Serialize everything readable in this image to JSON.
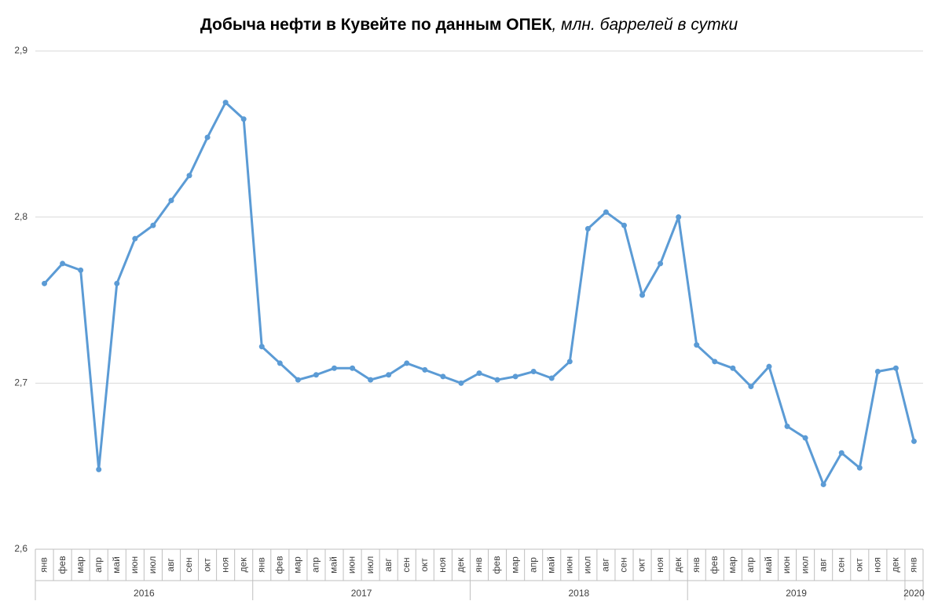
{
  "chart_data": {
    "type": "line",
    "title": "Добыча нефти в Кувейте по данным ОПЕК",
    "title_unit": ", млн. баррелей в сутки",
    "categories": [
      "янв",
      "фев",
      "мар",
      "апр",
      "май",
      "июн",
      "июл",
      "авг",
      "сен",
      "окт",
      "ноя",
      "дек",
      "янв",
      "фев",
      "мар",
      "апр",
      "май",
      "июн",
      "июл",
      "авг",
      "сен",
      "окт",
      "ноя",
      "дек",
      "янв",
      "фев",
      "мар",
      "апр",
      "май",
      "июн",
      "июл",
      "авг",
      "сен",
      "окт",
      "ноя",
      "дек",
      "янв",
      "фев",
      "мар",
      "апр",
      "май",
      "июн",
      "июл",
      "авг",
      "сен",
      "окт",
      "ноя",
      "дек",
      "янв"
    ],
    "x_groups": [
      "2016",
      "2017",
      "2018",
      "2019",
      "2020"
    ],
    "series": [
      {
        "color": "#5b9bd5",
        "values": [
          2.76,
          2.772,
          2.768,
          2.648,
          2.76,
          2.787,
          2.795,
          2.81,
          2.825,
          2.848,
          2.869,
          2.859,
          2.722,
          2.712,
          2.702,
          2.705,
          2.709,
          2.709,
          2.702,
          2.705,
          2.712,
          2.708,
          2.704,
          2.7,
          2.706,
          2.702,
          2.704,
          2.707,
          2.703,
          2.713,
          2.793,
          2.803,
          2.795,
          2.753,
          2.772,
          2.8,
          2.723,
          2.713,
          2.709,
          2.698,
          2.71,
          2.674,
          2.667,
          2.639,
          2.658,
          2.649,
          2.707,
          2.709,
          2.665
        ]
      }
    ],
    "ylim": [
      2.6,
      2.9
    ],
    "yticks": [
      {
        "value": 2.6,
        "label": "2,6"
      },
      {
        "value": 2.7,
        "label": "2,7"
      },
      {
        "value": 2.8,
        "label": "2,8"
      },
      {
        "value": 2.9,
        "label": "2,9"
      }
    ],
    "grid": true
  }
}
